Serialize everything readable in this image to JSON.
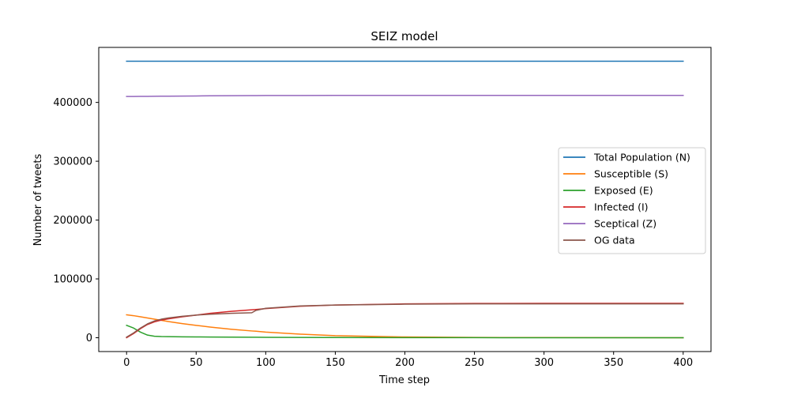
{
  "chart_data": {
    "type": "line",
    "title": "SEIZ model",
    "xlabel": "Time step",
    "ylabel": "Number of tweets",
    "xlim": [
      -20,
      420
    ],
    "ylim": [
      -23500,
      493500
    ],
    "x_ticks": [
      0,
      50,
      100,
      150,
      200,
      250,
      300,
      350,
      400
    ],
    "x_tick_labels": [
      "0",
      "50",
      "100",
      "150",
      "200",
      "250",
      "300",
      "350",
      "400"
    ],
    "y_ticks": [
      0,
      100000,
      200000,
      300000,
      400000
    ],
    "y_tick_labels": [
      "0",
      "100000",
      "200000",
      "300000",
      "400000"
    ],
    "grid": false,
    "legend_position": "center-right",
    "x": [
      0,
      5,
      10,
      15,
      20,
      25,
      30,
      40,
      50,
      60,
      75,
      90,
      93,
      100,
      125,
      150,
      200,
      250,
      300,
      350,
      400
    ],
    "series": [
      {
        "name": "Total Population (N)",
        "color": "#1f77b4",
        "values": [
          470000,
          470000,
          470000,
          470000,
          470000,
          470000,
          470000,
          470000,
          470000,
          470000,
          470000,
          470000,
          470000,
          470000,
          470000,
          470000,
          470000,
          470000,
          470000,
          470000,
          470000
        ]
      },
      {
        "name": "Susceptible (S)",
        "color": "#ff7f0e",
        "values": [
          39000,
          37500,
          35600,
          33600,
          31500,
          29500,
          27500,
          24000,
          21000,
          18200,
          14500,
          11500,
          11000,
          9500,
          6000,
          3500,
          1300,
          500,
          250,
          100,
          50
        ]
      },
      {
        "name": "Exposed (E)",
        "color": "#2ca02c",
        "values": [
          21000,
          16500,
          9500,
          4500,
          2500,
          2000,
          1800,
          1500,
          1300,
          1200,
          1000,
          800,
          780,
          700,
          500,
          350,
          200,
          100,
          60,
          40,
          30
        ]
      },
      {
        "name": "Infected (I)",
        "color": "#d62728",
        "values": [
          0,
          7000,
          15500,
          22500,
          27000,
          30000,
          32000,
          35500,
          38500,
          41500,
          44800,
          47500,
          48000,
          49500,
          53500,
          55500,
          57500,
          58200,
          58500,
          58500,
          58500
        ]
      },
      {
        "name": "Sceptical (Z)",
        "color": "#9467bd",
        "values": [
          410000,
          410100,
          410200,
          410300,
          410400,
          410500,
          410600,
          410800,
          411000,
          411200,
          411400,
          411600,
          411650,
          411700,
          411800,
          411900,
          412000,
          412000,
          412000,
          412000,
          412000
        ]
      },
      {
        "name": "OG data",
        "color": "#8c564b",
        "values": [
          1000,
          8000,
          16500,
          23500,
          28500,
          31500,
          33500,
          36500,
          38500,
          40000,
          41500,
          42500,
          46500,
          50000,
          54000,
          55500,
          57000,
          57500,
          57500,
          57500,
          57500
        ]
      }
    ]
  }
}
